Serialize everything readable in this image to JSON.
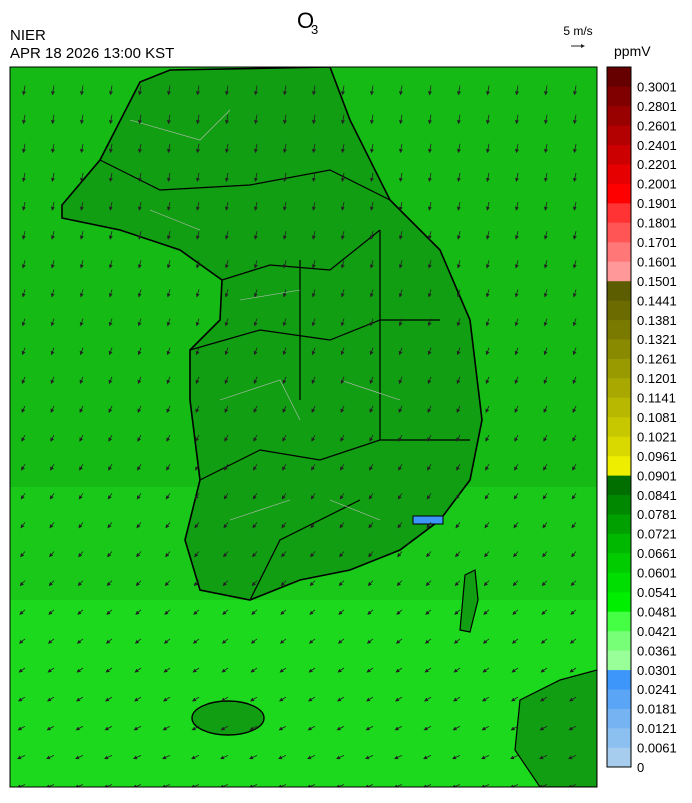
{
  "header": {
    "title": {
      "main": "O",
      "subscript": "3"
    },
    "agency": "NIER",
    "timestamp": "APR 18 2026 13:00 KST",
    "wind_reference": "5 m/s"
  },
  "colorbar": {
    "unit": "ppmV",
    "labels": [
      0,
      0.0061,
      0.0121,
      0.0181,
      0.0241,
      0.0301,
      0.0361,
      0.0421,
      0.0481,
      0.0541,
      0.0601,
      0.0661,
      0.0721,
      0.0781,
      0.0841,
      0.0901,
      0.0961,
      0.1021,
      0.1081,
      0.1141,
      0.1201,
      0.1261,
      0.1321,
      0.1381,
      0.1441,
      0.1501,
      0.1601,
      0.1701,
      0.1801,
      0.1901,
      0.2001,
      0.2201,
      0.2401,
      0.2601,
      0.2801,
      0.3001
    ],
    "colors": [
      "#a6cdee",
      "#8cc0f0",
      "#75b3f2",
      "#5aa5f5",
      "#3d96fa",
      "#99ff99",
      "#77ff77",
      "#44ff44",
      "#00ee00",
      "#00dd00",
      "#00cc00",
      "#00b800",
      "#00a000",
      "#008800",
      "#006f00",
      "#eeee00",
      "#d9d900",
      "#c8c800",
      "#b8b800",
      "#a8a800",
      "#999900",
      "#8a8a00",
      "#7a7a00",
      "#6b6b00",
      "#5c5c00",
      "#ff9999",
      "#ff7777",
      "#ff5555",
      "#ff3333",
      "#ff0000",
      "#e60000",
      "#cc0000",
      "#b30000",
      "#990000",
      "#800000",
      "#660000"
    ]
  }
}
